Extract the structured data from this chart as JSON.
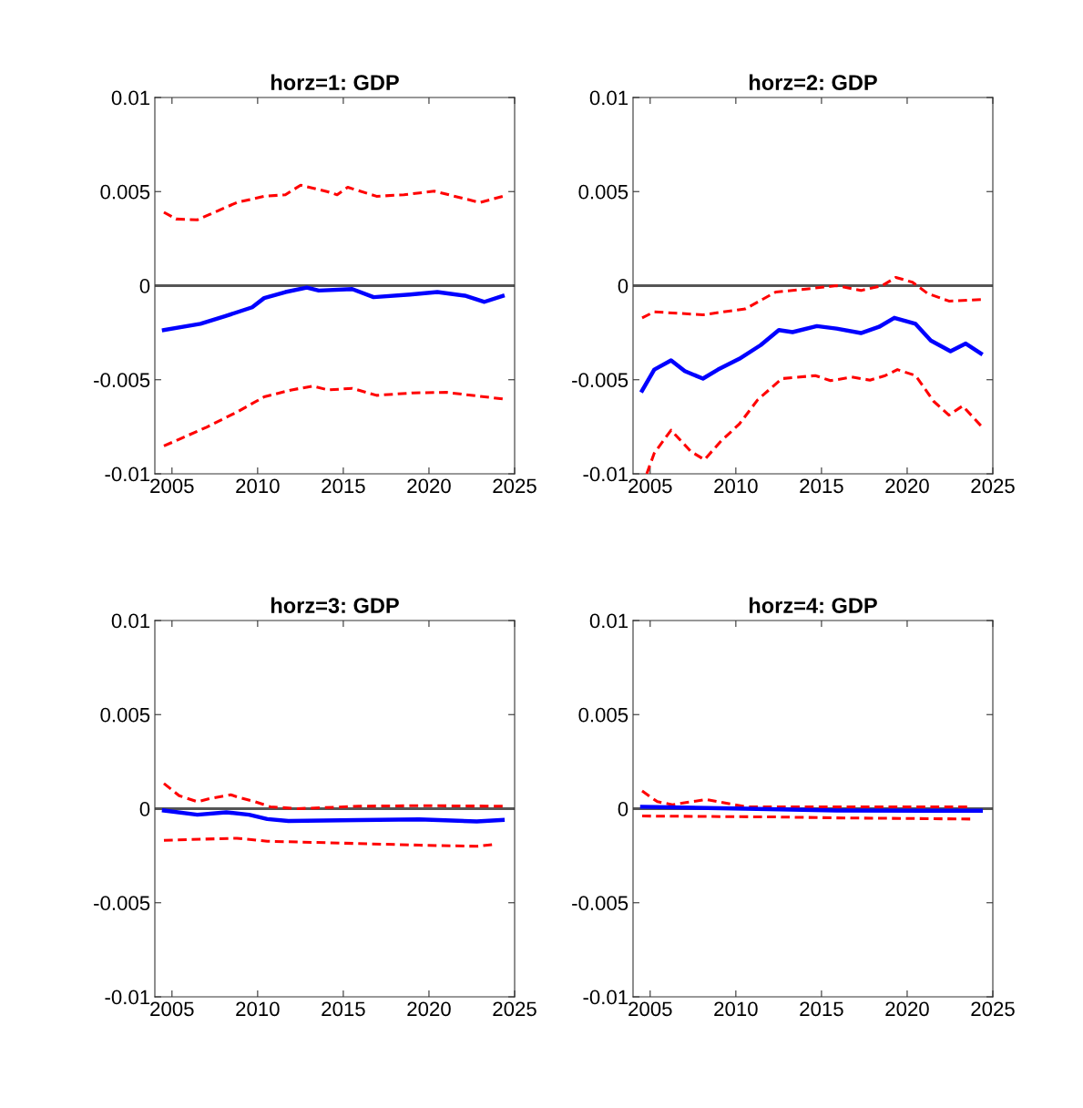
{
  "chart_data": [
    {
      "type": "line",
      "title": "horz=1: GDP",
      "xlim": [
        2004,
        2025
      ],
      "xticks": [
        2005,
        2010,
        2015,
        2020,
        2025
      ],
      "ylim": [
        -0.01,
        0.01
      ],
      "yticks": [
        -0.01,
        -0.005,
        0,
        0.005,
        0.01
      ],
      "grid": false,
      "ref_lines": [
        {
          "axis": "y",
          "value": 0,
          "color": "#555555"
        }
      ],
      "series": [
        {
          "color": "#ff0000",
          "line_style": "dashed",
          "x": [
            2004.53,
            2005.24,
            2006.48,
            2007.19,
            2008.79,
            2010.38,
            2011.62,
            2012.51,
            2014.1,
            2014.64,
            2015.26,
            2016.94,
            2018.54,
            2020.31,
            2022.97,
            2024.3
          ],
          "values": [
            0.0039,
            0.00354,
            0.0035,
            0.00378,
            0.00442,
            0.00475,
            0.00483,
            0.00534,
            0.00499,
            0.00483,
            0.00523,
            0.00475,
            0.00483,
            0.00502,
            0.00442,
            0.00475
          ]
        },
        {
          "color": "#0000ff",
          "line_style": "solid",
          "x": [
            2004.53,
            2006.66,
            2008.08,
            2009.68,
            2010.38,
            2011.62,
            2012.87,
            2013.57,
            2015.52,
            2016.77,
            2018.89,
            2020.49,
            2022.09,
            2023.24,
            2024.3
          ],
          "values": [
            -0.00236,
            -0.00203,
            -0.00163,
            -0.00115,
            -0.00066,
            -0.00034,
            -0.0001,
            -0.00026,
            -0.00018,
            -0.00061,
            -0.00047,
            -0.00034,
            -0.00053,
            -0.00086,
            -0.00055
          ]
        },
        {
          "color": "#ff0000",
          "line_style": "dashed",
          "x": [
            2004.53,
            2005.6,
            2007.02,
            2008.79,
            2010.38,
            2011.98,
            2013.22,
            2014.1,
            2015.52,
            2016.94,
            2019.07,
            2021.02,
            2022.79,
            2024.3
          ],
          "values": [
            -0.00852,
            -0.00809,
            -0.00752,
            -0.00672,
            -0.00591,
            -0.00554,
            -0.00534,
            -0.00554,
            -0.00546,
            -0.00583,
            -0.0057,
            -0.00567,
            -0.00586,
            -0.00602
          ]
        }
      ]
    },
    {
      "type": "line",
      "title": "horz=2: GDP",
      "xlim": [
        2004,
        2025
      ],
      "xticks": [
        2005,
        2010,
        2015,
        2020,
        2025
      ],
      "ylim": [
        -0.01,
        0.01
      ],
      "yticks": [
        -0.01,
        -0.005,
        0,
        0.005,
        0.01
      ],
      "grid": false,
      "ref_lines": [
        {
          "axis": "y",
          "value": 0,
          "color": "#555555"
        }
      ],
      "series": [
        {
          "color": "#ff0000",
          "line_style": "dashed",
          "x": [
            2004.53,
            2005.24,
            2006.66,
            2008.08,
            2010.56,
            2012.33,
            2014.1,
            2015.88,
            2017.3,
            2018.54,
            2019.34,
            2020.31,
            2021.2,
            2022.44,
            2024.3
          ],
          "values": [
            -0.00171,
            -0.00139,
            -0.00147,
            -0.00155,
            -0.00123,
            -0.00034,
            -0.00018,
            0,
            -0.00026,
            0,
            0.00044,
            0.00018,
            -0.00042,
            -0.00082,
            -0.00074
          ]
        },
        {
          "color": "#0000ff",
          "line_style": "solid",
          "x": [
            2004.53,
            2005.24,
            2006.22,
            2007.02,
            2008.08,
            2008.96,
            2010.2,
            2011.45,
            2012.51,
            2013.31,
            2014.73,
            2015.88,
            2017.3,
            2018.36,
            2019.25,
            2020.49,
            2021.38,
            2022.53,
            2023.42,
            2024.3
          ],
          "values": [
            -0.00558,
            -0.00446,
            -0.00397,
            -0.00454,
            -0.00494,
            -0.00446,
            -0.00389,
            -0.00316,
            -0.00236,
            -0.00247,
            -0.00215,
            -0.00228,
            -0.00252,
            -0.00219,
            -0.00171,
            -0.00203,
            -0.00292,
            -0.00349,
            -0.00308,
            -0.0036
          ]
        },
        {
          "color": "#ff0000",
          "line_style": "dashed",
          "x": [
            2004.8,
            2005.24,
            2006.22,
            2007.37,
            2008.17,
            2009.14,
            2010.2,
            2011.27,
            2012.69,
            2014.64,
            2015.53,
            2016.77,
            2017.83,
            2018.72,
            2019.43,
            2020.49,
            2021.55,
            2022.44,
            2023.24,
            2024.3
          ],
          "values": [
            -0.01,
            -0.0089,
            -0.00768,
            -0.00881,
            -0.00925,
            -0.00825,
            -0.00736,
            -0.00607,
            -0.00494,
            -0.00478,
            -0.00505,
            -0.00486,
            -0.00502,
            -0.00478,
            -0.00446,
            -0.00478,
            -0.00615,
            -0.00688,
            -0.00639,
            -0.00744
          ]
        }
      ]
    },
    {
      "type": "line",
      "title": "horz=3: GDP",
      "xlim": [
        2004,
        2025
      ],
      "xticks": [
        2005,
        2010,
        2015,
        2020,
        2025
      ],
      "ylim": [
        -0.01,
        0.01
      ],
      "yticks": [
        -0.01,
        -0.005,
        0,
        0.005,
        0.01
      ],
      "grid": false,
      "ref_lines": [
        {
          "axis": "y",
          "value": 0,
          "color": "#555555"
        }
      ],
      "series": [
        {
          "color": "#ff0000",
          "line_style": "dashed",
          "x": [
            2004.53,
            2005.42,
            2006.48,
            2007.19,
            2008.43,
            2008.96,
            2009.85,
            2010.74,
            2012.33,
            2015.88,
            2019.43,
            2024.3
          ],
          "values": [
            0.00134,
            0.00069,
            0.00037,
            0.00053,
            0.00074,
            0.00058,
            0.00037,
            0.0001,
            0,
            0.00013,
            0.00016,
            0.00013
          ]
        },
        {
          "color": "#0000ff",
          "line_style": "solid",
          "x": [
            2004.53,
            2006.48,
            2008.17,
            2009.5,
            2010.56,
            2011.8,
            2015.88,
            2019.43,
            2022.79,
            2024.3
          ],
          "values": [
            -0.0001,
            -0.00032,
            -0.00019,
            -0.00032,
            -0.00055,
            -0.00065,
            -0.00061,
            -0.00057,
            -0.00068,
            -0.0006
          ]
        },
        {
          "color": "#ff0000",
          "line_style": "dashed",
          "x": [
            2004.53,
            2008.79,
            2010.56,
            2014.1,
            2019.43,
            2022.79,
            2023.68
          ],
          "values": [
            -0.00168,
            -0.00157,
            -0.00173,
            -0.00181,
            -0.00194,
            -0.002,
            -0.00191
          ]
        }
      ]
    },
    {
      "type": "line",
      "title": "horz=4: GDP",
      "xlim": [
        2004,
        2025
      ],
      "xticks": [
        2005,
        2010,
        2015,
        2020,
        2025
      ],
      "ylim": [
        -0.01,
        0.01
      ],
      "yticks": [
        -0.01,
        -0.005,
        0,
        0.005,
        0.01
      ],
      "grid": false,
      "ref_lines": [
        {
          "axis": "y",
          "value": 0,
          "color": "#555555"
        }
      ],
      "series": [
        {
          "color": "#ff0000",
          "line_style": "dashed",
          "x": [
            2004.53,
            2005.42,
            2006.3,
            2008.26,
            2008.96,
            2010.56,
            2014.1,
            2019.43,
            2023.5
          ],
          "values": [
            0.00094,
            0.00037,
            0.00021,
            0.00049,
            0.00037,
            0.0001,
            0.0001,
            0.0001,
            0.0001
          ]
        },
        {
          "color": "#0000ff",
          "line_style": "solid",
          "x": [
            2004.53,
            2010.56,
            2015.88,
            2024.3
          ],
          "values": [
            0.0001,
            0,
            -0.0001,
            -0.00011
          ]
        },
        {
          "color": "#ff0000",
          "line_style": "dashed",
          "x": [
            2004.53,
            2012.33,
            2015.88,
            2023.68
          ],
          "values": [
            -0.00039,
            -0.00044,
            -0.00049,
            -0.00055
          ]
        }
      ]
    }
  ]
}
